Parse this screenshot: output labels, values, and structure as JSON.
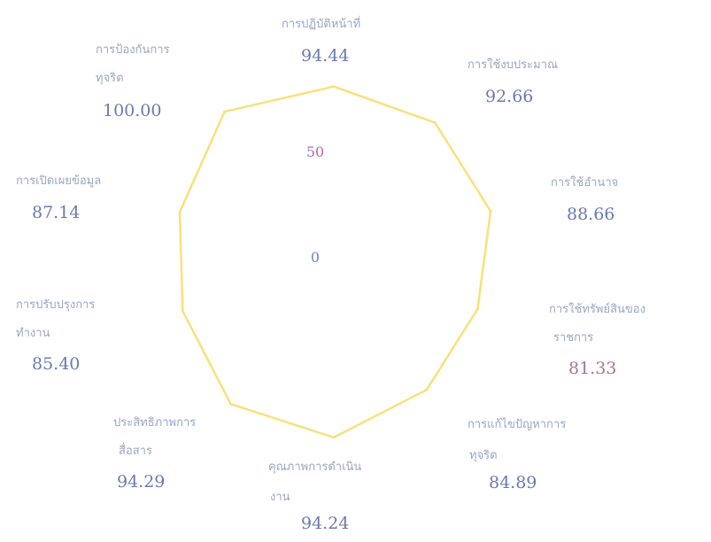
{
  "chart_data": {
    "type": "radar",
    "radial_range": [
      0,
      100
    ],
    "radial_ticks": [
      "0",
      "50"
    ],
    "grid": false,
    "legend": "none",
    "series": [
      {
        "color": "#f7e27a",
        "values": [
          94.44,
          92.66,
          88.66,
          81.33,
          84.89,
          94.24,
          94.29,
          85.4,
          87.14,
          100.0
        ]
      }
    ],
    "categories": [
      {
        "label_lines": [
          "การปฏิบัติหน้าที่"
        ],
        "value_text": "94.44"
      },
      {
        "label_lines": [
          "การใช้งบประมาณ"
        ],
        "value_text": "92.66"
      },
      {
        "label_lines": [
          "การใช้อำนาจ"
        ],
        "value_text": "88.66"
      },
      {
        "label_lines": [
          "การใช้ทรัพย์สินของ",
          "ราชการ"
        ],
        "value_text": "81.33"
      },
      {
        "label_lines": [
          "การแก้ไขปัญหาการ",
          "ทุจริต"
        ],
        "value_text": "84.89"
      },
      {
        "label_lines": [
          "คุณภาพการดำเนิน",
          "งาน"
        ],
        "value_text": "94.24"
      },
      {
        "label_lines": [
          "ประสิทธิภาพการ",
          "สื่อสาร"
        ],
        "value_text": "94.29"
      },
      {
        "label_lines": [
          "การปรับปรุงการ",
          "ทำงาน"
        ],
        "value_text": "85.40"
      },
      {
        "label_lines": [
          "การเปิดเผยข้อมูล"
        ],
        "value_text": "87.14"
      },
      {
        "label_lines": [
          "การป้องกันการ",
          "ทุจริต"
        ],
        "value_text": "100.00"
      }
    ],
    "colors": {
      "line": "#f7e27a",
      "label": "#9aa6c4",
      "value": "#6b79b0",
      "value_alt": "#a9739c",
      "tick_50": "#b06bb0",
      "tick_0": "#6f86c6"
    }
  }
}
